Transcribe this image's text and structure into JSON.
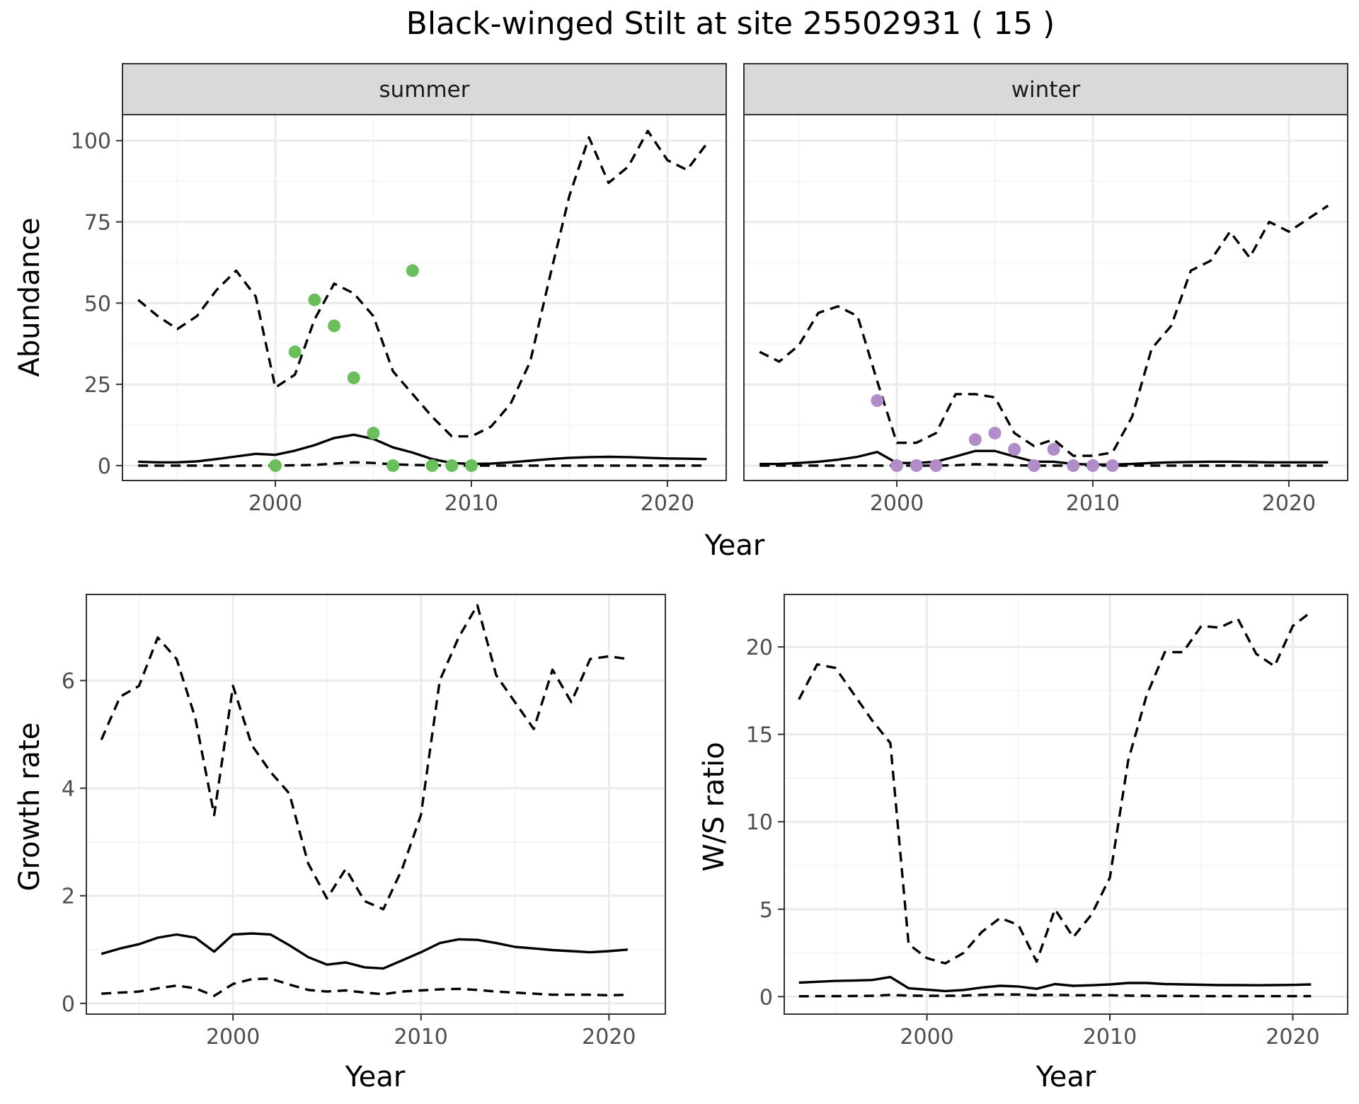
{
  "figure": {
    "title": "Black-winged Stilt at site 25502931 ( 15 )"
  },
  "chart_data": [
    {
      "type": "line",
      "panel": "abundance",
      "facets": [
        "summer",
        "winter"
      ],
      "xlabel": "Year",
      "ylabel": "Abundance",
      "xlim": [
        1992.2,
        2023.0
      ],
      "ylim": [
        -4.6,
        108.0
      ],
      "x_ticks": [
        2000,
        2010,
        2020
      ],
      "y_ticks": [
        0,
        25,
        50,
        75,
        100
      ],
      "grid": true,
      "point_colors": {
        "summer": "#6abf5a",
        "winter": "#b08cc8"
      },
      "series": {
        "summer": {
          "upper": {
            "x": [
              1993,
              1994,
              1995,
              1996,
              1997,
              1998,
              1999,
              2000,
              2001,
              2002,
              2003,
              2004,
              2005,
              2006,
              2007,
              2008,
              2009,
              2010,
              2011,
              2012,
              2013,
              2014,
              2015,
              2016,
              2017,
              2018,
              2019,
              2020,
              2021,
              2022
            ],
            "y": [
              51,
              46,
              42,
              46,
              54,
              60,
              52,
              24,
              28,
              45,
              56,
              53,
              46,
              29,
              22,
              15,
              9,
              9,
              12,
              19,
              32,
              58,
              83,
              101,
              87,
              92,
              103,
              94,
              91,
              99
            ]
          },
          "mean": {
            "x": [
              1993,
              1994,
              1995,
              1996,
              1997,
              1998,
              1999,
              2000,
              2001,
              2002,
              2003,
              2004,
              2005,
              2006,
              2007,
              2008,
              2009,
              2010,
              2011,
              2012,
              2013,
              2014,
              2015,
              2016,
              2017,
              2018,
              2019,
              2020,
              2021,
              2022
            ],
            "y": [
              1.2,
              1.0,
              1.0,
              1.3,
              2.0,
              2.8,
              3.6,
              3.3,
              4.6,
              6.3,
              8.5,
              9.5,
              8.2,
              5.6,
              4.0,
              2.0,
              0.8,
              0.5,
              0.6,
              1.0,
              1.5,
              2.0,
              2.4,
              2.6,
              2.7,
              2.6,
              2.4,
              2.2,
              2.1,
              2.0
            ]
          },
          "lower": {
            "x": [
              1993,
              1994,
              1995,
              1996,
              1997,
              1998,
              1999,
              2000,
              2001,
              2002,
              2003,
              2004,
              2005,
              2006,
              2007,
              2008,
              2009,
              2010,
              2011,
              2012,
              2013,
              2014,
              2015,
              2016,
              2017,
              2018,
              2019,
              2020,
              2021,
              2022
            ],
            "y": [
              0,
              0,
              0,
              0,
              0,
              0,
              0,
              0,
              0.1,
              0.2,
              0.6,
              1.0,
              0.8,
              0.4,
              0.2,
              0.1,
              0,
              0,
              0,
              0,
              0,
              0,
              0,
              0,
              0,
              0,
              0,
              0,
              0,
              0
            ]
          },
          "observed": {
            "x": [
              2000,
              2001,
              2002,
              2003,
              2004,
              2005,
              2006,
              2007,
              2008,
              2009,
              2010
            ],
            "y": [
              0,
              35,
              51,
              43,
              27,
              10,
              0,
              60,
              0,
              0,
              0
            ]
          }
        },
        "winter": {
          "upper": {
            "x": [
              1993,
              1994,
              1995,
              1996,
              1997,
              1998,
              1999,
              2000,
              2001,
              2002,
              2003,
              2004,
              2005,
              2006,
              2007,
              2008,
              2009,
              2010,
              2011,
              2012,
              2013,
              2014,
              2015,
              2016,
              2017,
              2018,
              2019,
              2020,
              2021,
              2022
            ],
            "y": [
              35,
              32,
              37,
              47,
              49,
              46,
              26,
              7,
              7,
              10,
              22,
              22,
              21,
              10,
              6,
              8,
              3,
              3,
              4,
              15,
              36,
              43,
              60,
              63,
              72,
              64,
              75,
              72,
              76,
              80
            ]
          },
          "mean": {
            "x": [
              1993,
              1994,
              1995,
              1996,
              1997,
              1998,
              1999,
              2000,
              2001,
              2002,
              2003,
              2004,
              2005,
              2006,
              2007,
              2008,
              2009,
              2010,
              2011,
              2012,
              2013,
              2014,
              2015,
              2016,
              2017,
              2018,
              2019,
              2020,
              2021,
              2022
            ],
            "y": [
              0.5,
              0.5,
              0.8,
              1.2,
              1.8,
              2.7,
              4.2,
              0.8,
              0.8,
              1.2,
              2.8,
              4.5,
              4.5,
              2.8,
              1.2,
              1.2,
              0.5,
              0.3,
              0.3,
              0.5,
              0.8,
              1.0,
              1.1,
              1.2,
              1.2,
              1.1,
              1.0,
              1.0,
              1.0,
              1.0
            ]
          },
          "lower": {
            "x": [
              1993,
              1994,
              1995,
              1996,
              1997,
              1998,
              1999,
              2000,
              2001,
              2002,
              2003,
              2004,
              2005,
              2006,
              2007,
              2008,
              2009,
              2010,
              2011,
              2012,
              2013,
              2014,
              2015,
              2016,
              2017,
              2018,
              2019,
              2020,
              2021,
              2022
            ],
            "y": [
              0,
              0,
              0,
              0,
              0,
              0,
              0,
              0,
              0,
              0,
              0.1,
              0.4,
              0.3,
              0.1,
              0,
              0,
              0,
              0,
              0,
              0,
              0,
              0,
              0,
              0,
              0,
              0,
              0,
              0,
              0,
              0
            ]
          },
          "observed": {
            "x": [
              1999,
              2000,
              2001,
              2002,
              2004,
              2005,
              2006,
              2007,
              2008,
              2009,
              2010,
              2011
            ],
            "y": [
              20,
              0,
              0,
              0,
              8,
              10,
              5,
              0,
              5,
              0,
              0,
              0
            ]
          }
        }
      }
    },
    {
      "type": "line",
      "panel": "growth",
      "xlabel": "Year",
      "ylabel": "Growth rate",
      "xlim": [
        1992.2,
        2023.0
      ],
      "ylim": [
        -0.2,
        7.6
      ],
      "x_ticks": [
        2000,
        2010,
        2020
      ],
      "y_ticks": [
        0,
        2,
        4,
        6
      ],
      "grid": true,
      "series": {
        "upper": {
          "x": [
            1993,
            1994,
            1995,
            1996,
            1997,
            1998,
            1999,
            2000,
            2001,
            2002,
            2003,
            2004,
            2005,
            2006,
            2007,
            2008,
            2009,
            2010,
            2011,
            2012,
            2013,
            2014,
            2015,
            2016,
            2017,
            2018,
            2019,
            2020,
            2021
          ],
          "y": [
            4.9,
            5.7,
            5.9,
            6.8,
            6.4,
            5.3,
            3.5,
            5.9,
            4.8,
            4.3,
            3.9,
            2.6,
            1.95,
            2.5,
            1.9,
            1.75,
            2.5,
            3.5,
            6.0,
            6.8,
            7.4,
            6.1,
            5.6,
            5.1,
            6.2,
            5.6,
            6.4,
            6.45,
            6.4
          ]
        },
        "mean": {
          "x": [
            1993,
            1994,
            1995,
            1996,
            1997,
            1998,
            1999,
            2000,
            2001,
            2002,
            2003,
            2004,
            2005,
            2006,
            2007,
            2008,
            2009,
            2010,
            2011,
            2012,
            2013,
            2014,
            2015,
            2016,
            2017,
            2018,
            2019,
            2020,
            2021
          ],
          "y": [
            0.92,
            1.02,
            1.1,
            1.22,
            1.28,
            1.22,
            0.96,
            1.28,
            1.3,
            1.28,
            1.08,
            0.86,
            0.72,
            0.76,
            0.67,
            0.65,
            0.8,
            0.95,
            1.12,
            1.19,
            1.18,
            1.12,
            1.05,
            1.02,
            0.99,
            0.97,
            0.95,
            0.97,
            1.0
          ]
        },
        "lower": {
          "x": [
            1993,
            1994,
            1995,
            1996,
            1997,
            1998,
            1999,
            2000,
            2001,
            2002,
            2003,
            2004,
            2005,
            2006,
            2007,
            2008,
            2009,
            2010,
            2011,
            2012,
            2013,
            2014,
            2015,
            2016,
            2017,
            2018,
            2019,
            2020,
            2021
          ],
          "y": [
            0.18,
            0.2,
            0.22,
            0.28,
            0.33,
            0.28,
            0.14,
            0.36,
            0.45,
            0.46,
            0.35,
            0.25,
            0.22,
            0.24,
            0.2,
            0.17,
            0.22,
            0.24,
            0.26,
            0.27,
            0.25,
            0.22,
            0.2,
            0.18,
            0.16,
            0.16,
            0.16,
            0.15,
            0.16
          ]
        }
      }
    },
    {
      "type": "line",
      "panel": "ratio",
      "xlabel": "Year",
      "ylabel": "W/S ratio",
      "xlim": [
        1992.2,
        2023.0
      ],
      "ylim": [
        -1.0,
        23.0
      ],
      "x_ticks": [
        2000,
        2010,
        2020
      ],
      "y_ticks": [
        0,
        5,
        10,
        15,
        20
      ],
      "grid": true,
      "series": {
        "upper": {
          "x": [
            1993,
            1994,
            1995,
            1996,
            1997,
            1998,
            1999,
            2000,
            2001,
            2002,
            2003,
            2004,
            2005,
            2006,
            2007,
            2008,
            2009,
            2010,
            2011,
            2012,
            2013,
            2014,
            2015,
            2016,
            2017,
            2018,
            2019,
            2020,
            2021
          ],
          "y": [
            17.0,
            19.0,
            18.8,
            17.3,
            15.8,
            14.5,
            3.0,
            2.2,
            1.9,
            2.5,
            3.7,
            4.5,
            4.1,
            2.0,
            5.0,
            3.4,
            4.7,
            6.8,
            13.5,
            17.2,
            19.7,
            19.7,
            21.2,
            21.1,
            21.6,
            19.6,
            18.9,
            21.2,
            22.0
          ]
        },
        "mean": {
          "x": [
            1993,
            1994,
            1995,
            1996,
            1997,
            1998,
            1999,
            2000,
            2001,
            2002,
            2003,
            2004,
            2005,
            2006,
            2007,
            2008,
            2009,
            2010,
            2011,
            2012,
            2013,
            2014,
            2015,
            2016,
            2017,
            2018,
            2019,
            2020,
            2021
          ],
          "y": [
            0.8,
            0.85,
            0.9,
            0.92,
            0.95,
            1.12,
            0.48,
            0.4,
            0.32,
            0.38,
            0.52,
            0.62,
            0.58,
            0.45,
            0.72,
            0.62,
            0.65,
            0.7,
            0.78,
            0.78,
            0.72,
            0.7,
            0.68,
            0.66,
            0.66,
            0.65,
            0.66,
            0.67,
            0.7
          ]
        },
        "lower": {
          "x": [
            1993,
            1994,
            1995,
            1996,
            1997,
            1998,
            1999,
            2000,
            2001,
            2002,
            2003,
            2004,
            2005,
            2006,
            2007,
            2008,
            2009,
            2010,
            2011,
            2012,
            2013,
            2014,
            2015,
            2016,
            2017,
            2018,
            2019,
            2020,
            2021
          ],
          "y": [
            0.02,
            0.03,
            0.03,
            0.04,
            0.05,
            0.1,
            0.06,
            0.05,
            0.05,
            0.06,
            0.1,
            0.12,
            0.12,
            0.08,
            0.1,
            0.08,
            0.08,
            0.08,
            0.06,
            0.05,
            0.04,
            0.04,
            0.03,
            0.03,
            0.03,
            0.03,
            0.03,
            0.03,
            0.03
          ]
        }
      }
    }
  ]
}
